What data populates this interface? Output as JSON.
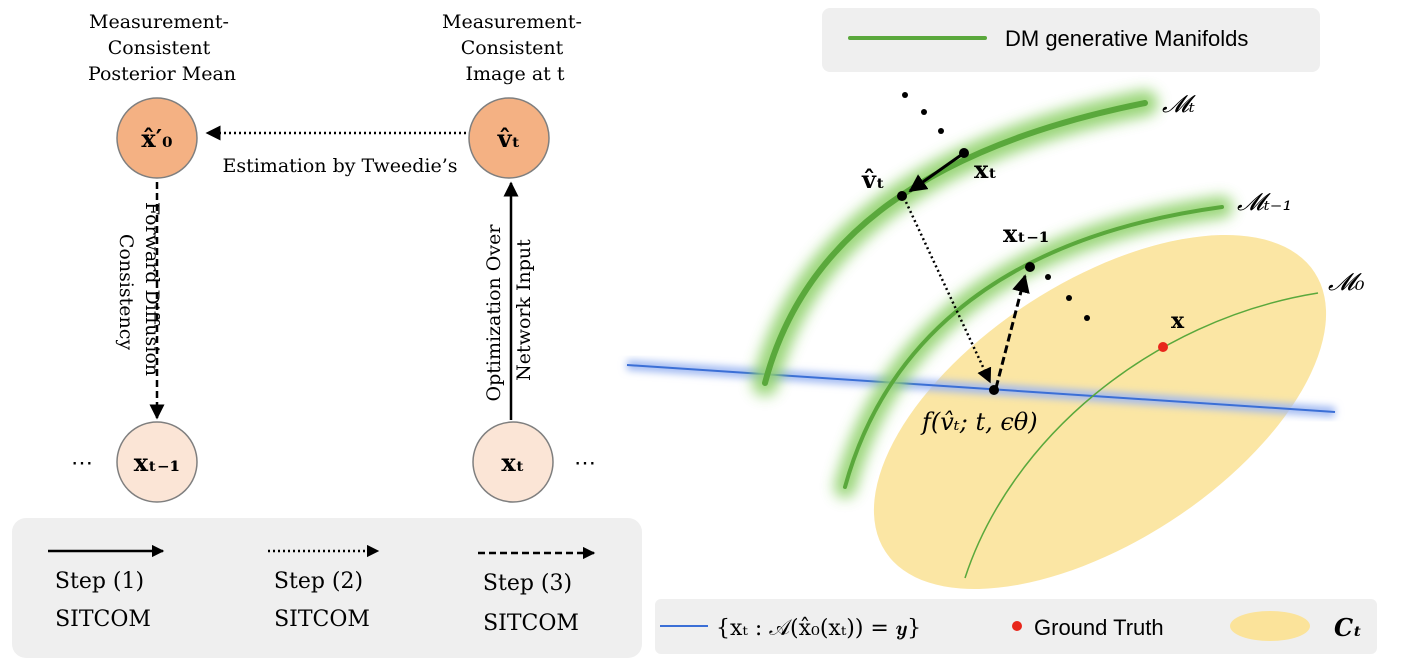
{
  "left_panel": {
    "node_posterior_mean": {
      "caption": [
        "Measurement-",
        "Consistent",
        "Posterior Mean"
      ],
      "symbol": "x̂′₀"
    },
    "node_image_t": {
      "caption": [
        "Measurement-",
        "Consistent",
        "Image at t"
      ],
      "symbol": "v̂ₜ"
    },
    "node_x_t_minus_1": {
      "symbol": "xₜ₋₁"
    },
    "node_x_t": {
      "symbol": "xₜ"
    },
    "ellipsis": "⋯",
    "edge_estimation_label": "Estimation by Tweedie’s",
    "edge_forward_label": [
      "Forward Diffusion",
      "Consistency"
    ],
    "edge_optimization_label": [
      "Optimization Over",
      "Network Input"
    ],
    "legend": [
      {
        "line_style": "solid",
        "label": [
          "Step (1)",
          "SITCOM"
        ]
      },
      {
        "line_style": "dotted",
        "label": [
          "Step (2)",
          "SITCOM"
        ]
      },
      {
        "line_style": "dashed",
        "label": [
          "Step (3)",
          "SITCOM"
        ]
      }
    ]
  },
  "right_panel": {
    "top_legend_label": "DM generative Manifolds",
    "manifold_labels": {
      "m_t": "𝓜ₜ",
      "m_t_minus_1": "𝓜ₜ₋₁",
      "m_0": "𝓜₀"
    },
    "point_labels": {
      "v_hat_t": "v̂ₜ",
      "x_t": "xₜ",
      "x_t_minus_1": "xₜ₋₁",
      "x_ground_truth": "x",
      "f_label": "f(v̂ₜ; t, ϵθ)"
    },
    "bottom_legend": {
      "blue_line_label": "{xₜ : 𝒜(x̂₀(xₜ)) = 𝒚}",
      "ground_truth_label": "Ground Truth",
      "ellipse_label": "𝑪ₜ"
    },
    "colors": {
      "manifold_green": "#5aa83c",
      "glow_green": "#8fd16a",
      "ellipse_yellow": "#fbe39a",
      "blue_line": "#3b6fd6",
      "node_orange": "#f4b183",
      "node_light": "#fbe5d6",
      "ground_truth_red": "#e8261b",
      "legend_bg": "#efefef"
    }
  }
}
